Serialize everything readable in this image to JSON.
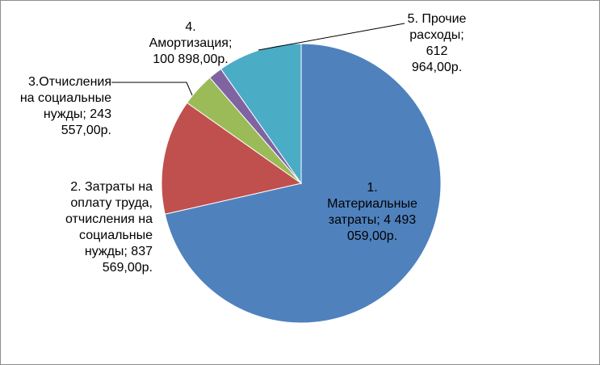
{
  "chart_data": {
    "type": "pie",
    "title": "",
    "series": [
      {
        "values": [
          4493059.0,
          837569.0,
          243557.0,
          100898.0,
          612964.0
        ]
      }
    ],
    "slices": [
      {
        "label": "1. Материальные затраты; 4 493 059,00р.",
        "value": 4493059.0,
        "color": "#4F81BD"
      },
      {
        "label": "2. Затраты на оплату труда, отчисления на социальные нужды; 837 569,00р.",
        "value": 837569.0,
        "color": "#C0504D"
      },
      {
        "label": "3.Отчисления на социальные нужды; 243 557,00р.",
        "value": 243557.0,
        "color": "#9BBB59"
      },
      {
        "label": "4. Амортизация; 100 898,00р.",
        "value": 100898.0,
        "color": "#8064A2"
      },
      {
        "label": "5. Прочие расходы; 612 964,00р.",
        "value": 612964.0,
        "color": "#4BACC6"
      }
    ],
    "start_angle": "12 o'clock",
    "direction": "clockwise",
    "legend": "none"
  },
  "labels": {
    "s1": "1.\nМатериальные\nзатраты; 4 493\n059,00р.",
    "s2": "2. Затраты на\nоплату труда,\nотчисления на\nсоциальные\nнужды; 837\n569,00р.",
    "s3": "3.Отчисления\nна социальные\nнужды; 243\n557,00р.",
    "s4": "4.\nАмортизация;\n100 898,00р.",
    "s5": "5. Прочие\nрасходы;\n612\n964,00р."
  }
}
